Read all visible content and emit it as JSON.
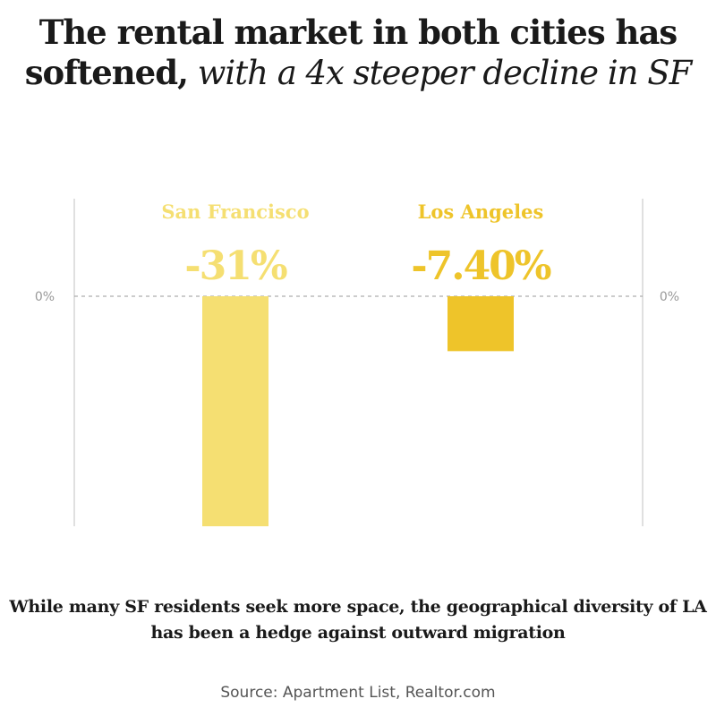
{
  "title": {
    "bold": "The rental market in both cities has softened,",
    "italic": "with a 4x steeper decline in SF"
  },
  "subtitle": "While many SF residents seek more space, the geographical diversity of LA has been a hedge against outward migration",
  "source": "Source: Apartment List, Realtor.com",
  "chart_data": {
    "type": "bar",
    "categories": [
      "San Francisco",
      "Los Angeles"
    ],
    "values": [
      -31,
      -7.4
    ],
    "data_labels": [
      "-31%",
      "-7.40%"
    ],
    "colors": [
      "#F5DF72",
      "#EEC42A"
    ],
    "ylim": [
      -31,
      0
    ],
    "y_tick_labels": {
      "left": "0%",
      "right": "0%"
    },
    "zero_line": "dashed",
    "grid": false
  }
}
